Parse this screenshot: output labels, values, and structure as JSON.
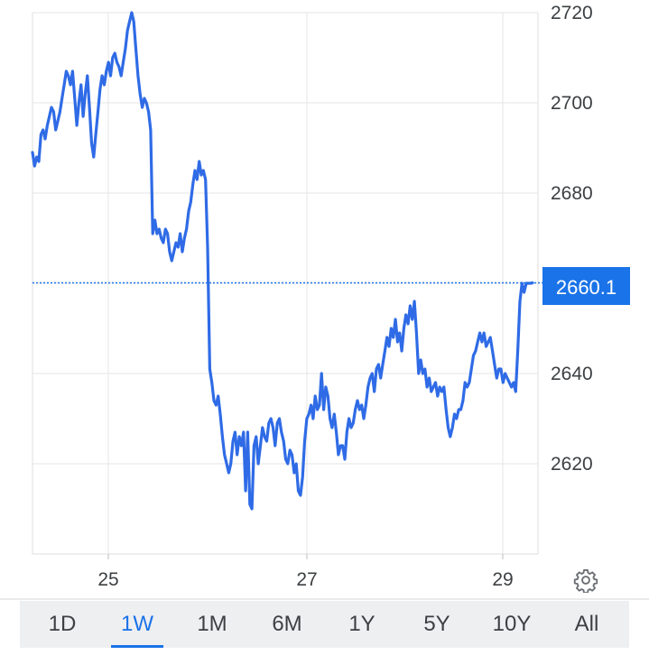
{
  "chart_data": {
    "type": "line",
    "x_ticks": [
      "25",
      "27",
      "29"
    ],
    "y_ticks": [
      2620,
      2640,
      2660,
      2680,
      2700,
      2720
    ],
    "ylim": [
      2600,
      2722
    ],
    "current_value": "2660.1",
    "current_value_num": 2660.1,
    "grid": true,
    "series": [
      {
        "color": "#2f6be6",
        "values": [
          2689,
          2686,
          2688,
          2687,
          2693,
          2694,
          2692,
          2695,
          2697,
          2699,
          2698,
          2694,
          2696,
          2698,
          2701,
          2704,
          2707,
          2706,
          2704,
          2707,
          2701,
          2695,
          2700,
          2704,
          2697,
          2702,
          2706,
          2699,
          2691,
          2688,
          2693,
          2698,
          2703,
          2706,
          2704,
          2707,
          2709,
          2706,
          2710,
          2711,
          2709,
          2708,
          2706,
          2709,
          2712,
          2716,
          2718,
          2720,
          2718,
          2712,
          2706,
          2702,
          2699,
          2701,
          2700,
          2698,
          2694,
          2671,
          2674,
          2671,
          2672,
          2670,
          2669,
          2672,
          2671,
          2667,
          2665,
          2667,
          2669,
          2668,
          2671,
          2667,
          2670,
          2672,
          2676,
          2678,
          2682,
          2685,
          2683,
          2687,
          2684,
          2685,
          2683,
          2668,
          2641,
          2638,
          2634,
          2633,
          2635,
          2631,
          2626,
          2622,
          2620,
          2618,
          2620,
          2625,
          2627,
          2622,
          2626,
          2624,
          2627,
          2614,
          2627,
          2611,
          2610,
          2624,
          2626,
          2620,
          2624,
          2628,
          2626,
          2625,
          2629,
          2630,
          2628,
          2624,
          2629,
          2630,
          2627,
          2625,
          2621,
          2620,
          2623,
          2622,
          2618,
          2620,
          2614,
          2613,
          2617,
          2625,
          2630,
          2631,
          2633,
          2630,
          2635,
          2632,
          2633,
          2640,
          2632,
          2637,
          2635,
          2630,
          2628,
          2631,
          2627,
          2622,
          2624,
          2624,
          2621,
          2627,
          2630,
          2628,
          2629,
          2632,
          2634,
          2632,
          2633,
          2630,
          2633,
          2637,
          2639,
          2640,
          2636,
          2641,
          2642,
          2639,
          2642,
          2645,
          2648,
          2646,
          2650,
          2648,
          2652,
          2647,
          2649,
          2645,
          2650,
          2653,
          2651,
          2655,
          2652,
          2656,
          2649,
          2640,
          2643,
          2640,
          2641,
          2637,
          2639,
          2636,
          2637,
          2638,
          2635,
          2637,
          2636,
          2637,
          2632,
          2628,
          2626,
          2628,
          2631,
          2630,
          2632,
          2632,
          2634,
          2638,
          2637,
          2638,
          2641,
          2644,
          2645,
          2647,
          2649,
          2647,
          2649,
          2646,
          2647,
          2648,
          2645,
          2642,
          2639,
          2641,
          2641,
          2638,
          2640,
          2639,
          2638,
          2637,
          2638,
          2636,
          2645,
          2656,
          2660,
          2658,
          2660,
          2660,
          2660,
          2660.1
        ]
      }
    ]
  },
  "range_tabs": [
    {
      "label": "1D"
    },
    {
      "label": "1W",
      "active": true
    },
    {
      "label": "1M"
    },
    {
      "label": "6M"
    },
    {
      "label": "1Y"
    },
    {
      "label": "5Y"
    },
    {
      "label": "10Y"
    },
    {
      "label": "All"
    }
  ],
  "icons": {
    "settings": "gear-icon"
  },
  "colors": {
    "line": "#2f6be6",
    "accent": "#1a73e8",
    "grid": "#e6e6e6"
  }
}
